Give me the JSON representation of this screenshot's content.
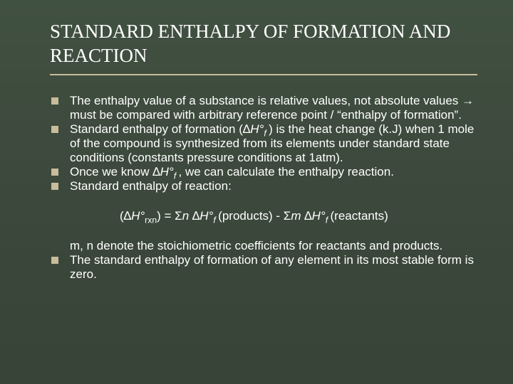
{
  "slide": {
    "title": "STANDARD ENTHALPY OF FORMATION AND REACTION",
    "bullets": {
      "b1": "The enthalpy value of a substance is relative values, not absolute values → must be compared with arbitrary reference point / “enthalpy of formation”.",
      "b2_pre": "Standard enthalpy of formation (∆",
      "b2_sym": "H°",
      "b2_sub": "f ",
      "b2_post": ") is the heat change (k.J) when 1 mole of the compound is synthesized from its elements under standard state conditions (constants pressure conditions at 1atm).",
      "b3_pre": "Once we know ∆",
      "b3_sym": "H°",
      "b3_sub": "f ",
      "b3_post": ", we can calculate the enthalpy reaction.",
      "b4": "Standard enthalpy of reaction:",
      "eq_open": "(∆",
      "eq_h1": "H°",
      "eq_rxn": "rxn",
      "eq_eq": ") = Σ",
      "eq_n": "n",
      "eq_dh2": " ∆",
      "eq_h2": "H°",
      "eq_f1": "f ",
      "eq_prod": "(products)",
      "eq_minus": " - Σ",
      "eq_m": "m",
      "eq_dh3": " ∆",
      "eq_h3": "H°",
      "eq_f2": "f ",
      "eq_react": "(reactants)",
      "b5": "m, n denote the stoichiometric coefficients for reactants and products.",
      "b6": "The standard enthalpy of formation of any element in its most stable form is zero."
    },
    "colors": {
      "background_top": "#415141",
      "background_bottom": "#374437",
      "text": "#ffffff",
      "accent": "#c8bc9a"
    },
    "typography": {
      "title_family": "Times New Roman",
      "title_size_pt": 20,
      "body_family": "Arial",
      "body_size_pt": 13
    }
  }
}
